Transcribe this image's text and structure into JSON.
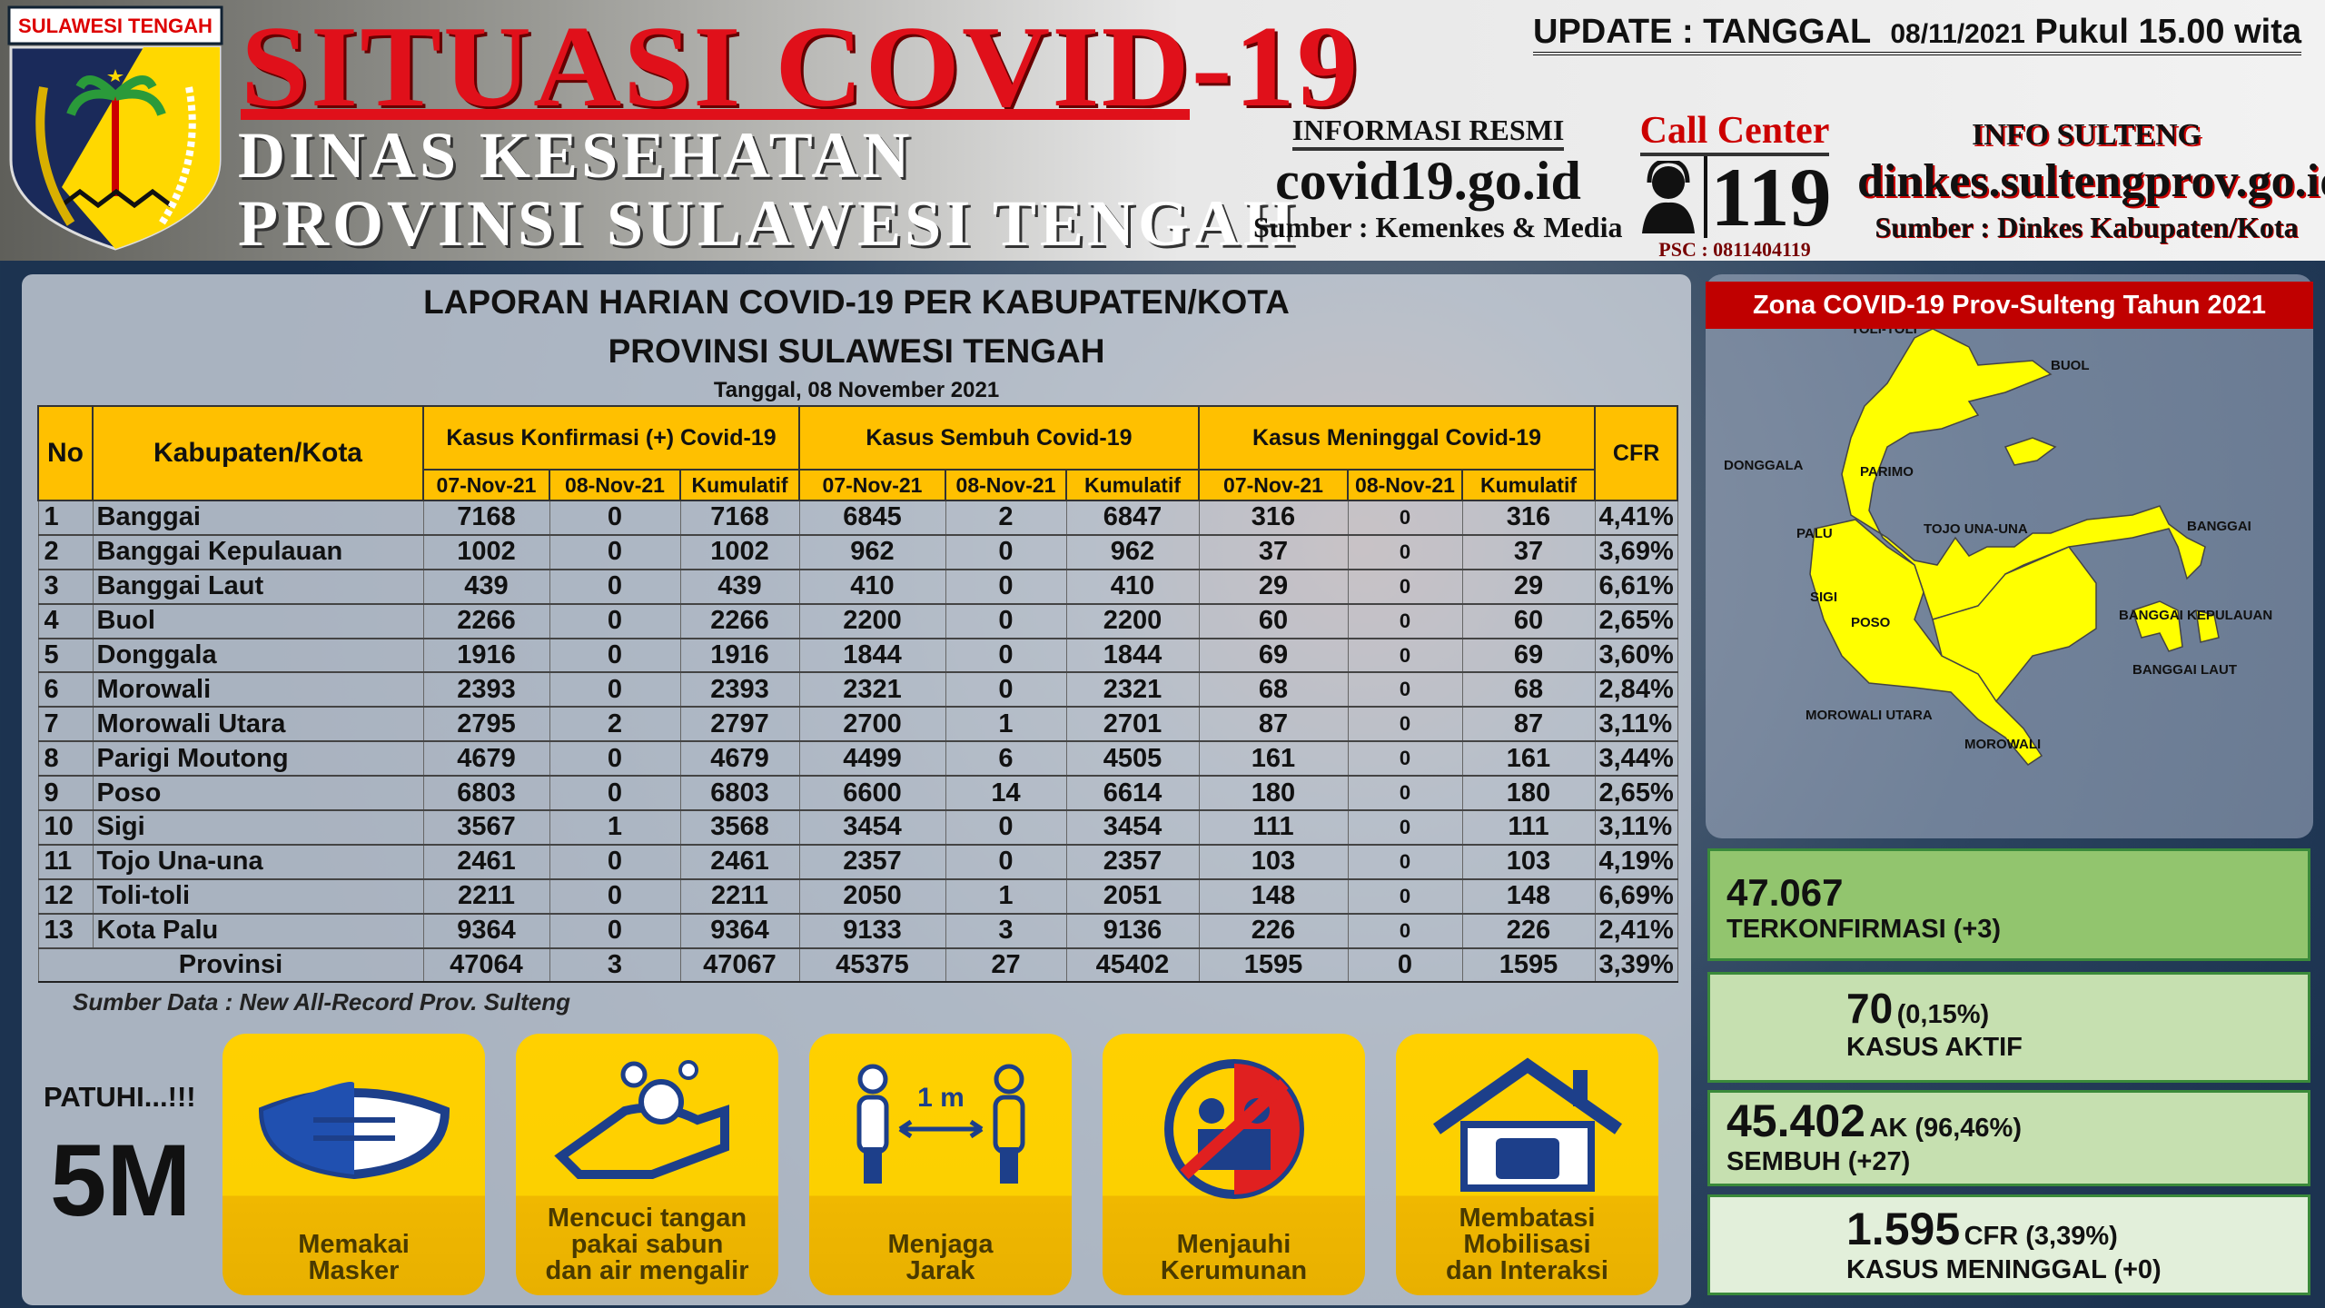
{
  "header": {
    "logo_text": "SULAWESI TENGAH",
    "title": "SITUASI COVID-19",
    "subtitle1": "DINAS KESEHATAN",
    "subtitle2": "PROVINSI SULAWESI TENGAH",
    "update_label": "UPDATE : TANGGAL",
    "update_date": "08/11/2021",
    "update_time": "Pukul 15.00 wita",
    "info_resmi_label": "INFORMASI RESMI",
    "info_resmi_site": "covid19.go.id",
    "info_resmi_source": "Sumber : Kemenkes & Media",
    "call_center_label": "Call Center",
    "call_center_number": "119",
    "psc": "PSC : 0811404119",
    "info_sulteng_label": "INFO SULTENG",
    "info_sulteng_site": "dinkes.sultengprov.go.id",
    "info_sulteng_source": "Sumber : Dinkes Kabupaten/Kota"
  },
  "report": {
    "title1": "LAPORAN HARIAN COVID-19 PER KABUPATEN/KOTA",
    "title2": "PROVINSI SULAWESI TENGAH",
    "date": "Tanggal, 08 November 2021",
    "headers": {
      "no": "No",
      "region": "Kabupaten/Kota",
      "konfirmasi": "Kasus Konfirmasi (+) Covid-19",
      "sembuh": "Kasus Sembuh Covid-19",
      "meninggal": "Kasus Meninggal Covid-19",
      "cfr": "CFR",
      "d1": "07-Nov-21",
      "d2": "08-Nov-21",
      "kum": "Kumulatif"
    },
    "rows": [
      [
        "1",
        "Banggai",
        "7168",
        "0",
        "7168",
        "6845",
        "2",
        "6847",
        "316",
        "0",
        "316",
        "4,41%"
      ],
      [
        "2",
        "Banggai Kepulauan",
        "1002",
        "0",
        "1002",
        "962",
        "0",
        "962",
        "37",
        "0",
        "37",
        "3,69%"
      ],
      [
        "3",
        "Banggai Laut",
        "439",
        "0",
        "439",
        "410",
        "0",
        "410",
        "29",
        "0",
        "29",
        "6,61%"
      ],
      [
        "4",
        "Buol",
        "2266",
        "0",
        "2266",
        "2200",
        "0",
        "2200",
        "60",
        "0",
        "60",
        "2,65%"
      ],
      [
        "5",
        "Donggala",
        "1916",
        "0",
        "1916",
        "1844",
        "0",
        "1844",
        "69",
        "0",
        "69",
        "3,60%"
      ],
      [
        "6",
        "Morowali",
        "2393",
        "0",
        "2393",
        "2321",
        "0",
        "2321",
        "68",
        "0",
        "68",
        "2,84%"
      ],
      [
        "7",
        "Morowali Utara",
        "2795",
        "2",
        "2797",
        "2700",
        "1",
        "2701",
        "87",
        "0",
        "87",
        "3,11%"
      ],
      [
        "8",
        "Parigi Moutong",
        "4679",
        "0",
        "4679",
        "4499",
        "6",
        "4505",
        "161",
        "0",
        "161",
        "3,44%"
      ],
      [
        "9",
        "Poso",
        "6803",
        "0",
        "6803",
        "6600",
        "14",
        "6614",
        "180",
        "0",
        "180",
        "2,65%"
      ],
      [
        "10",
        "Sigi",
        "3567",
        "1",
        "3568",
        "3454",
        "0",
        "3454",
        "111",
        "0",
        "111",
        "3,11%"
      ],
      [
        "11",
        "Tojo Una-una",
        "2461",
        "0",
        "2461",
        "2357",
        "0",
        "2357",
        "103",
        "0",
        "103",
        "4,19%"
      ],
      [
        "12",
        "Toli-toli",
        "2211",
        "0",
        "2211",
        "2050",
        "1",
        "2051",
        "148",
        "0",
        "148",
        "6,69%"
      ],
      [
        "13",
        "Kota Palu",
        "9364",
        "0",
        "9364",
        "9133",
        "3",
        "9136",
        "226",
        "0",
        "226",
        "2,41%"
      ]
    ],
    "total": [
      "Provinsi",
      "47064",
      "3",
      "47067",
      "45375",
      "27",
      "45402",
      "1595",
      "0",
      "1595",
      "3,39%"
    ],
    "source": "Sumber Data : New All-Record Prov. Sulteng"
  },
  "campaign": {
    "patuhi": "PATUHI...!!!",
    "title": "5M",
    "items": [
      {
        "label1": "Memakai",
        "label2": "Masker",
        "icon": "mask-icon"
      },
      {
        "label1": "Mencuci tangan",
        "label2": "pakai sabun",
        "label3": "dan air mengalir",
        "icon": "hand-wash-icon"
      },
      {
        "label1": "Menjaga",
        "label2": "Jarak",
        "icon": "distance-icon",
        "distance": "1 m"
      },
      {
        "label1": "Menjauhi",
        "label2": "Kerumunan",
        "icon": "no-crowd-icon"
      },
      {
        "label1": "Membatasi",
        "label2": "Mobilisasi",
        "label3": "dan Interaksi",
        "icon": "stay-home-icon"
      }
    ]
  },
  "map": {
    "title": "Zona COVID-19 Prov-Sulteng Tahun 2021",
    "zone_color": "#ffff00",
    "labels": [
      "TOLI-TOLI",
      "BUOL",
      "DONGGALA",
      "PARIMO",
      "PALU",
      "TOJO UNA-UNA",
      "BANGGAI",
      "SIGI",
      "POSO",
      "BANGGAI KEPULAUAN",
      "BANGGAI LAUT",
      "MOROWALI UTARA",
      "MOROWALI"
    ]
  },
  "stats": {
    "confirmed": {
      "value": "47.067",
      "label": "TERKONFIRMASI (+3)"
    },
    "active": {
      "value": "70",
      "pct": "(0,15%)",
      "label": "KASUS AKTIF"
    },
    "recovered": {
      "value": "45.402",
      "pct": "AK (96,46%)",
      "label": "SEMBUH (+27)"
    },
    "deaths": {
      "value": "1.595",
      "pct": "CFR (3,39%)",
      "label": "KASUS MENINGGAL (+0)"
    }
  },
  "colors": {
    "title_red": "#e0101a",
    "table_header": "#ffc000",
    "map_title": "#c00000",
    "stat1": "#92c56e",
    "stat2": "#c6e0b0",
    "stat4": "#e2efda"
  }
}
